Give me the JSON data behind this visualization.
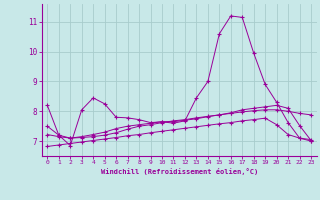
{
  "background_color": "#c8e8e8",
  "grid_color": "#a8cccc",
  "line_color": "#990099",
  "xlim": [
    -0.5,
    23.5
  ],
  "ylim": [
    6.5,
    11.6
  ],
  "yticks": [
    7,
    8,
    9,
    10,
    11
  ],
  "xticks": [
    0,
    1,
    2,
    3,
    4,
    5,
    6,
    7,
    8,
    9,
    10,
    11,
    12,
    13,
    14,
    15,
    16,
    17,
    18,
    19,
    20,
    21,
    22,
    23
  ],
  "xlabel": "Windchill (Refroidissement éolien,°C)",
  "line1_y": [
    8.2,
    7.2,
    6.85,
    8.05,
    8.45,
    8.25,
    7.8,
    7.78,
    7.72,
    7.62,
    7.65,
    7.6,
    7.68,
    8.45,
    9.0,
    10.6,
    11.2,
    11.15,
    9.95,
    8.9,
    8.3,
    7.62,
    7.1,
    7.05
  ],
  "line2_y": [
    7.22,
    7.15,
    7.1,
    7.12,
    7.15,
    7.2,
    7.28,
    7.4,
    7.5,
    7.55,
    7.62,
    7.68,
    7.72,
    7.78,
    7.83,
    7.88,
    7.93,
    7.98,
    8.02,
    8.05,
    8.05,
    8.0,
    7.93,
    7.88
  ],
  "line3_y": [
    6.82,
    6.87,
    6.92,
    6.97,
    7.02,
    7.07,
    7.12,
    7.18,
    7.22,
    7.28,
    7.33,
    7.38,
    7.43,
    7.48,
    7.53,
    7.58,
    7.62,
    7.68,
    7.72,
    7.77,
    7.55,
    7.22,
    7.1,
    7.0
  ],
  "line4_y": [
    7.5,
    7.2,
    7.1,
    7.15,
    7.22,
    7.3,
    7.42,
    7.5,
    7.55,
    7.6,
    7.65,
    7.65,
    7.7,
    7.75,
    7.82,
    7.88,
    7.95,
    8.05,
    8.1,
    8.15,
    8.2,
    8.1,
    7.52,
    7.02
  ]
}
